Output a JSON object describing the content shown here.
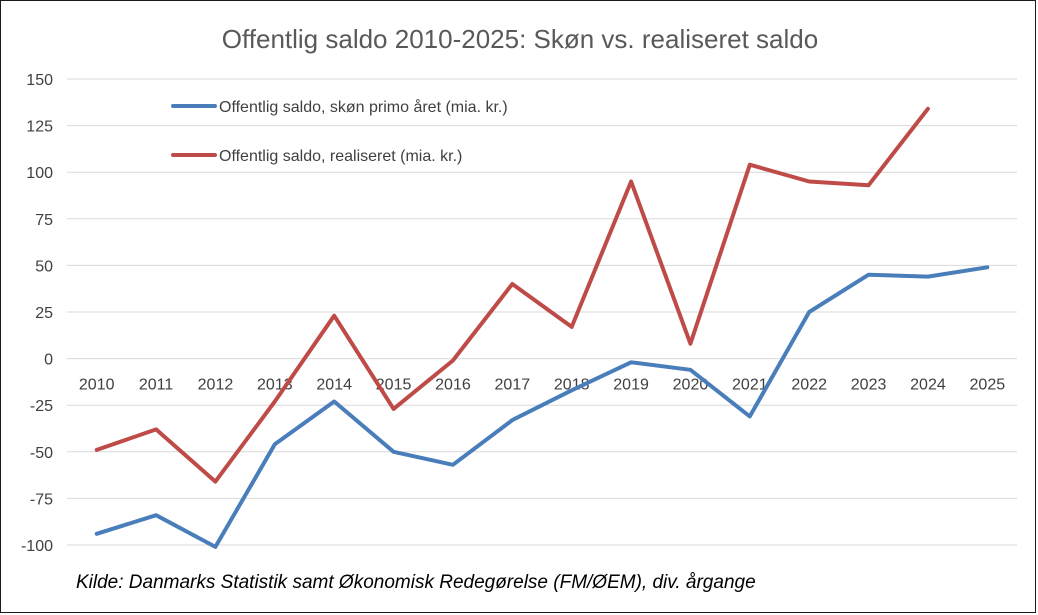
{
  "chart_data": {
    "type": "line",
    "title": "Offentlig saldo 2010-2025: Skøn vs. realiseret saldo",
    "categories": [
      "2010",
      "2011",
      "2012",
      "2013",
      "2014",
      "2015",
      "2016",
      "2017",
      "2018",
      "2019",
      "2020",
      "2021",
      "2022",
      "2023",
      "2024",
      "2025"
    ],
    "ylim": [
      -100,
      150
    ],
    "yticks": [
      150,
      125,
      100,
      75,
      50,
      25,
      0,
      -25,
      -50,
      -75,
      -100
    ],
    "grid": true,
    "legend_position": "top-left",
    "series": [
      {
        "name": "Offentlig saldo, skøn primo året (mia. kr.)",
        "color": "#4a7ebb",
        "values": [
          -94,
          -84,
          -101,
          -46,
          -23,
          -50,
          -57,
          -33,
          -17,
          -2,
          -6,
          -31,
          25,
          45,
          44,
          49
        ]
      },
      {
        "name": "Offentlig saldo, realiseret (mia. kr.)",
        "color": "#be4b48",
        "values": [
          -49,
          -38,
          -66,
          -23,
          23,
          -27,
          -1,
          40,
          17,
          95,
          8,
          104,
          95,
          93,
          134,
          null
        ]
      }
    ],
    "source": "Kilde: Danmarks Statistik samt Økonomisk Redegørelse (FM/ØEM), div. årgange"
  }
}
